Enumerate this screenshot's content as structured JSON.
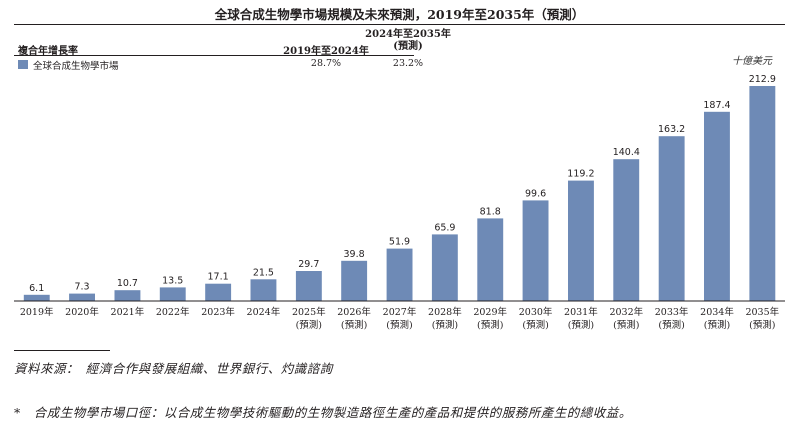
{
  "chart_data": {
    "type": "bar",
    "title": "全球合成生物學市場規模及未來預測，2019年至2035年（預測）",
    "unit": "十億美元",
    "categories": [
      "2019年",
      "2020年",
      "2021年",
      "2022年",
      "2023年",
      "2024年",
      "2025年",
      "2026年",
      "2027年",
      "2028年",
      "2029年",
      "2030年",
      "2031年",
      "2032年",
      "2033年",
      "2034年",
      "2035年"
    ],
    "category_sublabels": [
      "",
      "",
      "",
      "",
      "",
      "",
      "(預測)",
      "(預測)",
      "(預測)",
      "(預測)",
      "(預測)",
      "(預測)",
      "(預測)",
      "(預測)",
      "(預測)",
      "(預測)",
      "(預測)"
    ],
    "series": [
      {
        "name": "全球合成生物學市場",
        "values": [
          6.1,
          7.3,
          10.7,
          13.5,
          17.1,
          21.5,
          29.7,
          39.8,
          51.9,
          65.9,
          81.8,
          99.6,
          119.2,
          140.4,
          163.2,
          187.4,
          212.9
        ],
        "color": "#6e8ab6"
      }
    ],
    "ylim": [
      0,
      212.9
    ],
    "grid": false,
    "legend": "top-left"
  },
  "cagr_table": {
    "header": "複合年增長率",
    "period1": "2019年至2024年",
    "period2_line1": "2024年至2035年",
    "period2_line2": "(預測)",
    "legend_label": "全球合成生物學市場",
    "value1": "28.7%",
    "value2": "23.2%"
  },
  "footer": {
    "source": "資料來源：　經濟合作與發展組織、世界銀行、灼識諮詢",
    "note": "*　合成生物學市場口徑：以合成生物學技術驅動的生物製造路徑生產的產品和提供的服務所產生的總收益。"
  }
}
